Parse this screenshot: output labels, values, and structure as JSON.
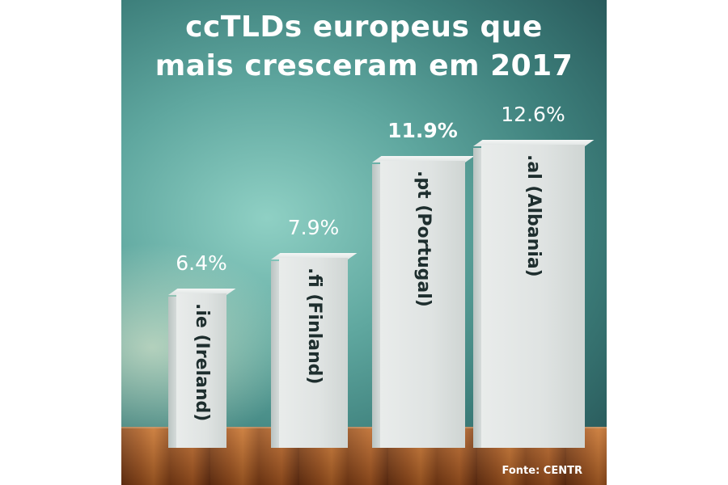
{
  "title_lines": [
    "ccTLDs europeus que",
    "mais cresceram em 2017"
  ],
  "source": "Fonte: CENTR",
  "chart_data": {
    "type": "bar",
    "categories": [
      ".ie (Ireland)",
      ".fi (Finland)",
      ".pt (Portugal)",
      ".al (Albania)"
    ],
    "values": [
      6.4,
      7.9,
      11.9,
      12.6
    ],
    "value_labels": [
      "6.4%",
      "7.9%",
      "11.9%",
      "12.6%"
    ],
    "highlight": ".pt (Portugal)",
    "title": "ccTLDs europeus que mais cresceram em 2017",
    "xlabel": "",
    "ylabel": ""
  },
  "colors": {
    "background": "#3d7f7b",
    "bar": "#e3e7e6",
    "text": "#ffffff",
    "bar_label": "#1e2e2e"
  }
}
